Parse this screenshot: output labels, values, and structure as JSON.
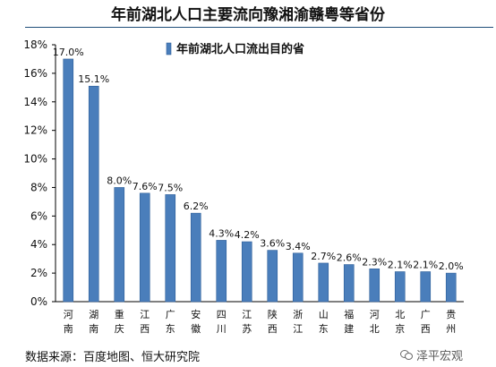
{
  "title": "年前湖北人口主要流向豫湘渝赣粤等省份",
  "source": "数据来源：百度地图、恒大研究院",
  "watermark": "泽平宏观",
  "colors": {
    "bar": "#4a7ebb",
    "bar_edge": "#2f5f99",
    "axis": "#000000"
  },
  "chart_data": {
    "type": "bar",
    "title": "年前湖北人口主要流向豫湘渝赣粤等省份",
    "legend": "年前湖北人口流出目的省",
    "legend_position": "top-center",
    "categories": [
      "河南",
      "湖南",
      "重庆",
      "江西",
      "广东",
      "安徽",
      "四川",
      "江苏",
      "陕西",
      "浙江",
      "山东",
      "福建",
      "河北",
      "北京",
      "广西",
      "贵州"
    ],
    "values": [
      17.0,
      15.1,
      8.0,
      7.6,
      7.5,
      6.2,
      4.3,
      4.2,
      3.6,
      3.4,
      2.7,
      2.6,
      2.3,
      2.1,
      2.1,
      2.0
    ],
    "data_labels": [
      "17.0%",
      "15.1%",
      "8.0%",
      "7.6%",
      "7.5%",
      "6.2%",
      "4.3%",
      "4.2%",
      "3.6%",
      "3.4%",
      "2.7%",
      "2.6%",
      "2.3%",
      "2.1%",
      "2.1%",
      "2.0%"
    ],
    "y_ticks": [
      "0%",
      "2%",
      "4%",
      "6%",
      "8%",
      "10%",
      "12%",
      "14%",
      "16%",
      "18%"
    ],
    "ylim": [
      0,
      18
    ],
    "grid": false
  }
}
